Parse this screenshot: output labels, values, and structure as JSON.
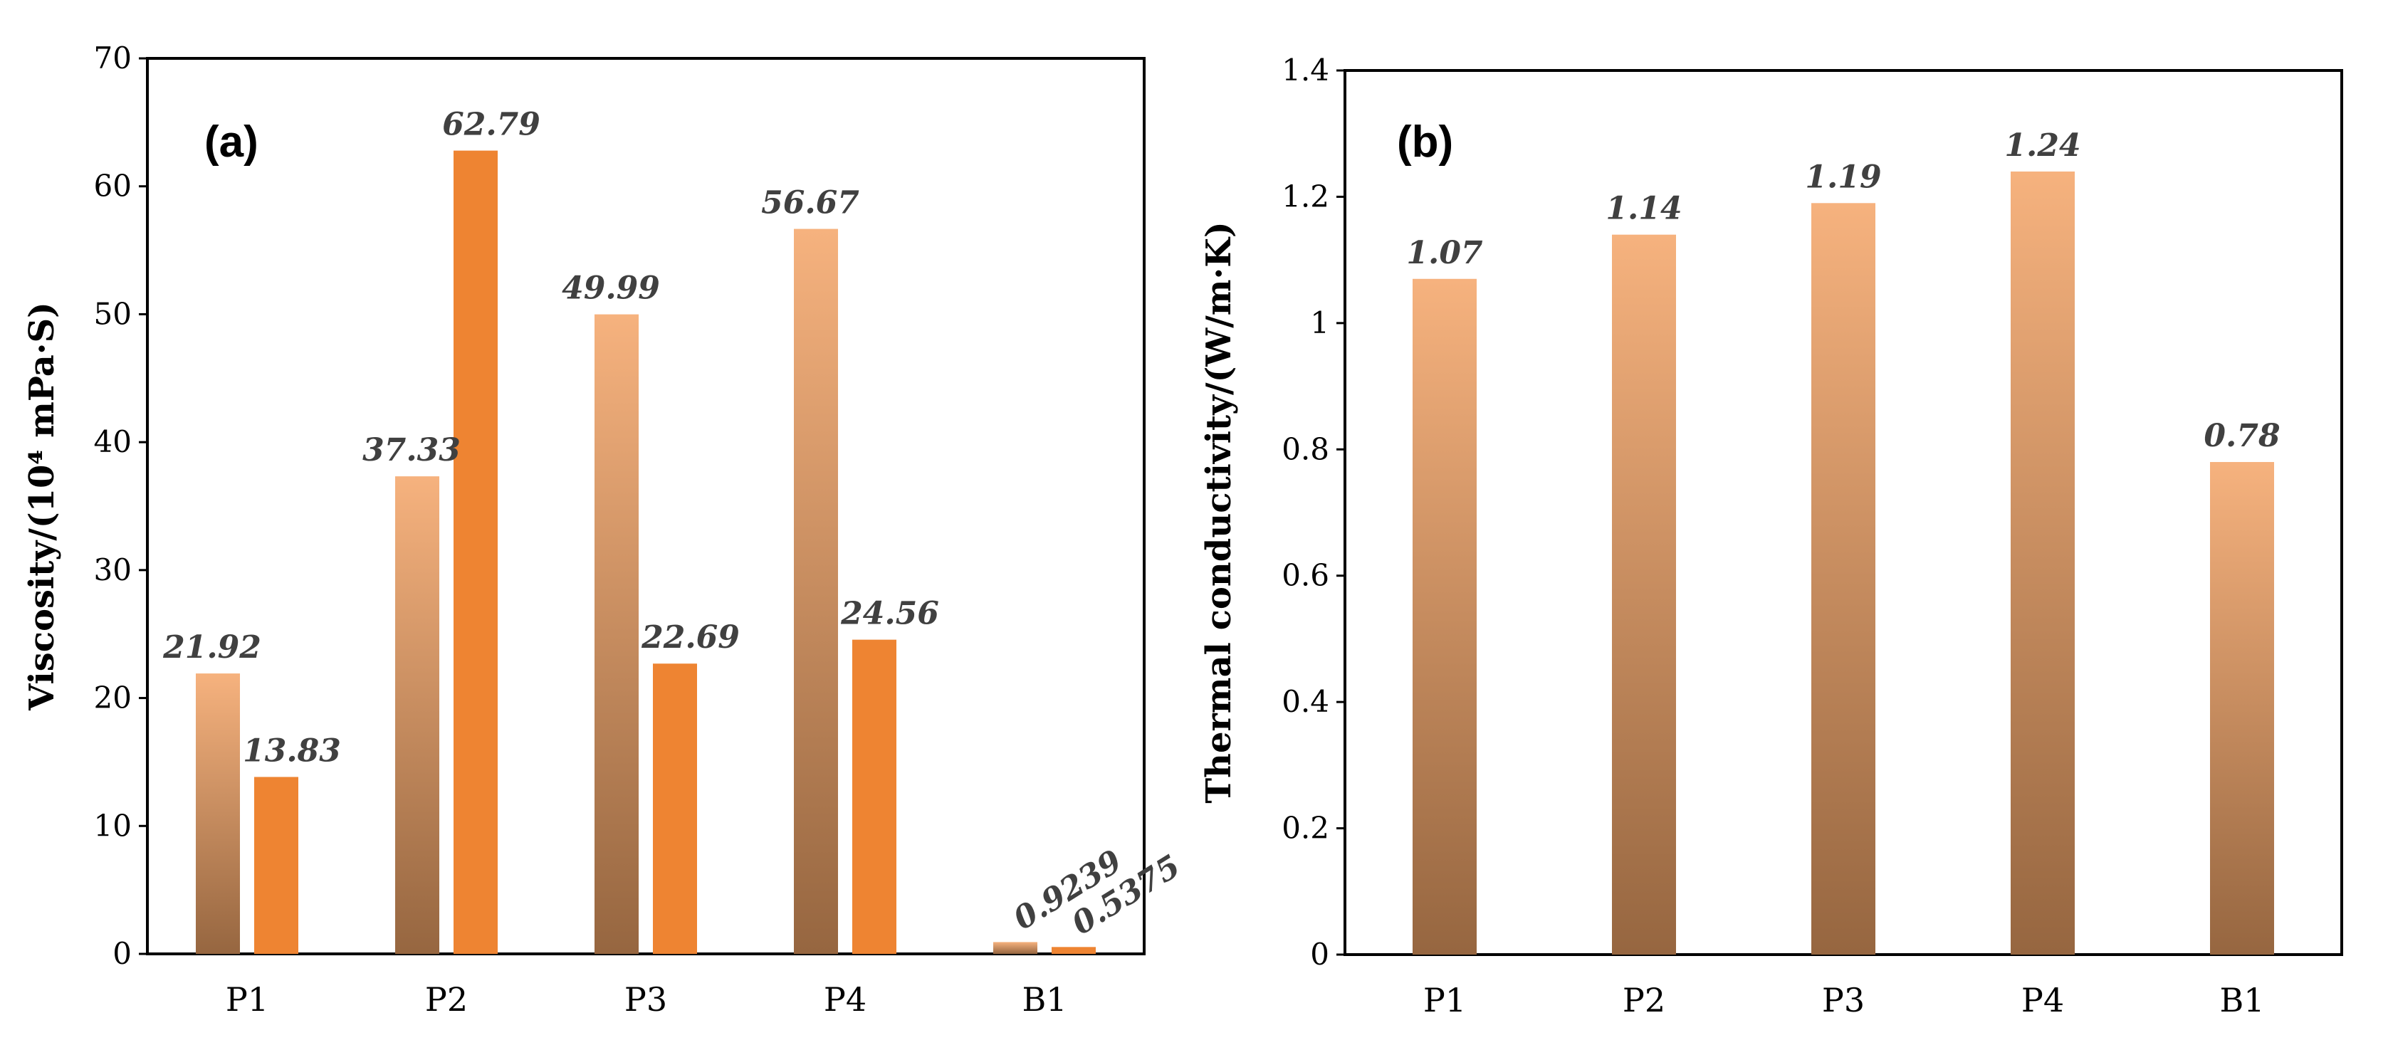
{
  "colors": {
    "bar_top": "#f6b27e",
    "bar_bottom": "#966640",
    "bar_solid": "#ee8432",
    "frame": "#000000"
  },
  "chart_data": [
    {
      "type": "bar",
      "panel_label": "(a)",
      "ylabel": "Viscosity/(10⁴ mPa·S)",
      "ylim": [
        0,
        70
      ],
      "yticks": [
        0,
        10,
        20,
        30,
        40,
        50,
        60,
        70
      ],
      "categories": [
        "P1",
        "P2",
        "P3",
        "P4",
        "B1"
      ],
      "series": [
        {
          "style": "gradient",
          "values": [
            21.92,
            37.33,
            49.99,
            56.67,
            0.9239
          ],
          "labels": [
            "21.92",
            "37.33",
            "49.99",
            "56.67",
            "0.9239"
          ]
        },
        {
          "style": "solid",
          "values": [
            13.83,
            62.79,
            22.69,
            24.56,
            0.5375
          ],
          "labels": [
            "13.83",
            "62.79",
            "22.69",
            "24.56",
            "0.5375"
          ]
        }
      ]
    },
    {
      "type": "bar",
      "panel_label": "(b)",
      "ylabel": "Thermal conductivity/(W/m·K)",
      "ylim": [
        0,
        1.4
      ],
      "yticks": [
        "0",
        "0.2",
        "0.4",
        "0.6",
        "0.8",
        "1",
        "1.2",
        "1.4"
      ],
      "categories": [
        "P1",
        "P2",
        "P3",
        "P4",
        "B1"
      ],
      "series": [
        {
          "style": "gradient",
          "values": [
            1.07,
            1.14,
            1.19,
            1.24,
            0.78
          ],
          "labels": [
            "1.07",
            "1.14",
            "1.19",
            "1.24",
            "0.78"
          ]
        }
      ]
    }
  ]
}
